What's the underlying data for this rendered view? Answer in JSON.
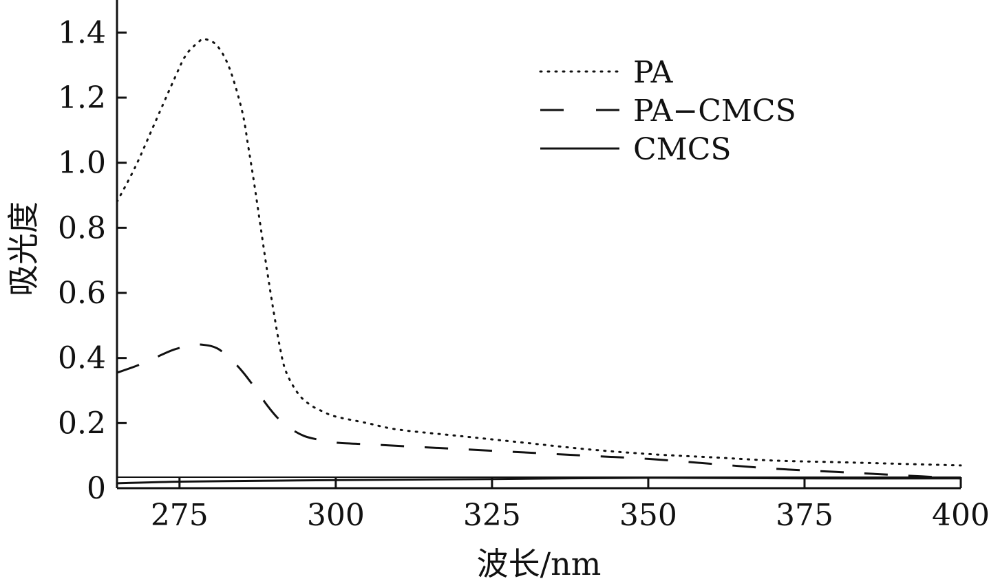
{
  "chart_data": {
    "type": "line",
    "title": "",
    "xlabel": "波长/nm",
    "ylabel": "吸光度",
    "xlim": [
      265,
      400
    ],
    "ylim": [
      0,
      1.5
    ],
    "x_ticks": [
      275,
      300,
      325,
      350,
      375,
      400
    ],
    "y_ticks": [
      0,
      0.2,
      0.4,
      0.6,
      0.8,
      1.0,
      1.2,
      1.4
    ],
    "x_tick_labels": [
      "275",
      "300",
      "325",
      "350",
      "375",
      "400"
    ],
    "y_tick_labels": [
      "0",
      "0.2",
      "0.4",
      "0.6",
      "0.8",
      "1.0",
      "1.2",
      "1.4"
    ],
    "grid": false,
    "legend_position": "top-right",
    "series": [
      {
        "name": "PA",
        "style": "dotted",
        "x": [
          265,
          268,
          271,
          274,
          276,
          278,
          279,
          281,
          283,
          285,
          286,
          287,
          288,
          289,
          290,
          291,
          292,
          294,
          296,
          298,
          300,
          305,
          310,
          320,
          330,
          340,
          350,
          360,
          370,
          380,
          390,
          400
        ],
        "y": [
          0.88,
          0.99,
          1.12,
          1.25,
          1.33,
          1.37,
          1.38,
          1.36,
          1.29,
          1.16,
          1.05,
          0.93,
          0.8,
          0.67,
          0.55,
          0.44,
          0.36,
          0.29,
          0.255,
          0.235,
          0.22,
          0.2,
          0.18,
          0.16,
          0.14,
          0.12,
          0.105,
          0.095,
          0.085,
          0.08,
          0.075,
          0.07
        ]
      },
      {
        "name": "PA−CMCS",
        "style": "dashed",
        "x": [
          265,
          268,
          271,
          274,
          277,
          279,
          281,
          283,
          285,
          287,
          289,
          291,
          293,
          295,
          297,
          300,
          305,
          310,
          320,
          330,
          340,
          350,
          360,
          370,
          380,
          390,
          400
        ],
        "y": [
          0.355,
          0.375,
          0.4,
          0.425,
          0.44,
          0.44,
          0.43,
          0.4,
          0.36,
          0.31,
          0.255,
          0.21,
          0.18,
          0.16,
          0.15,
          0.14,
          0.135,
          0.13,
          0.12,
          0.11,
          0.1,
          0.09,
          0.075,
          0.06,
          0.05,
          0.04,
          0.03
        ]
      },
      {
        "name": "CMCS",
        "style": "solid",
        "x": [
          265,
          275,
          290,
          300,
          325,
          350,
          375,
          400
        ],
        "y": [
          0.015,
          0.02,
          0.023,
          0.025,
          0.028,
          0.032,
          0.03,
          0.03
        ]
      }
    ]
  }
}
